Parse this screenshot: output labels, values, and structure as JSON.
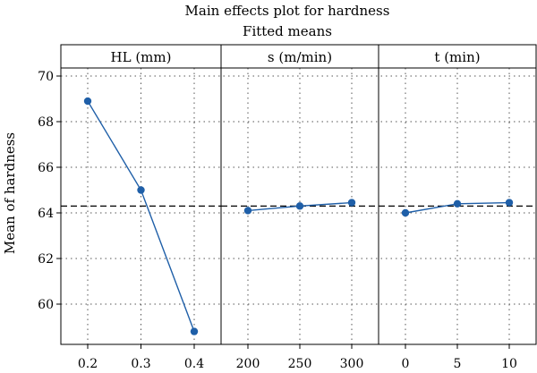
{
  "chart_data": {
    "type": "line",
    "title": "Main effects plot for hardness",
    "subtitle": "Fitted means",
    "ylabel": "Mean of hardness",
    "ylim": [
      59.0,
      70.2
    ],
    "yticks": [
      60,
      62,
      64,
      66,
      68,
      70
    ],
    "reference_mean": 64.3,
    "grid": true,
    "panels": [
      {
        "label": "HL (mm)",
        "categories": [
          "0.2",
          "0.3",
          "0.4"
        ],
        "values": [
          68.9,
          65.0,
          58.8
        ]
      },
      {
        "label": "s (m/min)",
        "categories": [
          "200",
          "250",
          "300"
        ],
        "values": [
          64.1,
          64.3,
          64.45
        ]
      },
      {
        "label": "t (min)",
        "categories": [
          "0",
          "5",
          "10"
        ],
        "values": [
          64.0,
          64.4,
          64.45
        ]
      }
    ],
    "colors": {
      "series": "#1f5fa8",
      "frame": "#000000",
      "grid": "#555555"
    }
  }
}
